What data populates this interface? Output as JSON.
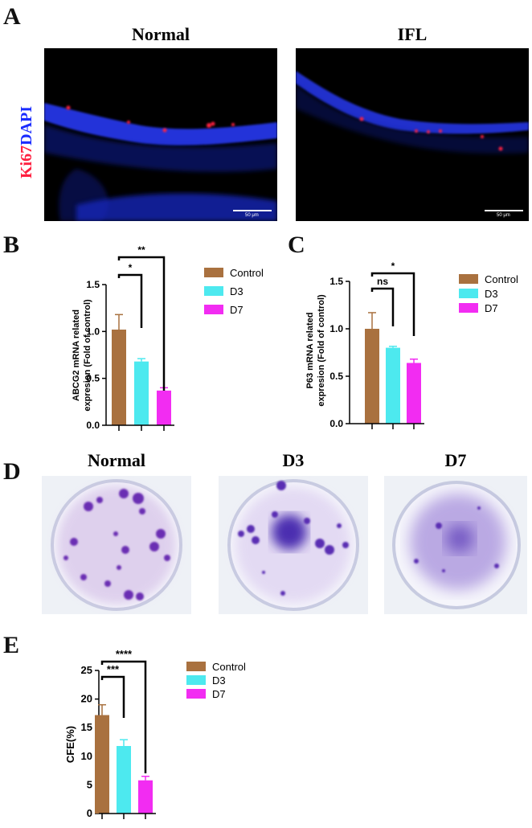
{
  "panels": {
    "A": {
      "letter": "A",
      "titles": [
        "Normal",
        "IFL"
      ],
      "stain_label_red": "Ki67",
      "stain_label_blue": "DAPI",
      "scale_bar": "50 μm"
    },
    "B": {
      "letter": "B"
    },
    "C": {
      "letter": "C"
    },
    "D": {
      "letter": "D",
      "titles": [
        "Normal",
        "D3",
        "D7"
      ]
    },
    "E": {
      "letter": "E"
    }
  },
  "colors": {
    "control": "#a9713f",
    "d3": "#4de9ef",
    "d7": "#f22cf2",
    "dapi": "#1a2cff",
    "ki67": "#ff2040"
  },
  "chart_data": [
    {
      "id": "B",
      "type": "bar",
      "categories": [
        "Control",
        "D3",
        "D7"
      ],
      "values": [
        1.02,
        0.68,
        0.37
      ],
      "errors": [
        0.16,
        0.03,
        0.03
      ],
      "ylabel": "ABCG2 mRNA related expresion (Fold of control)",
      "ylabel_lines": [
        "ABCG2  mRNA  related",
        "expresion  (Fold of control)"
      ],
      "ylim": [
        0,
        1.5
      ],
      "yticks": [
        "0.0",
        "0.5",
        "1.0",
        "1.5"
      ],
      "legend": [
        "Control",
        "D3",
        "D7"
      ],
      "legend_position": "right",
      "significance": [
        {
          "from": 0,
          "to": 1,
          "label": "*"
        },
        {
          "from": 0,
          "to": 2,
          "label": "**"
        }
      ]
    },
    {
      "id": "C",
      "type": "bar",
      "categories": [
        "Control",
        "D3",
        "D7"
      ],
      "values": [
        1.0,
        0.8,
        0.64
      ],
      "errors": [
        0.17,
        0.015,
        0.04
      ],
      "ylabel": "P63 mRNA related expresion (Fold of control)",
      "ylabel_lines": [
        "P63  mRNA  related",
        "expresion  (Fold of control)"
      ],
      "ylim": [
        0,
        1.5
      ],
      "yticks": [
        "0.0",
        "0.5",
        "1.0",
        "1.5"
      ],
      "legend": [
        "Control",
        "D3",
        "D7"
      ],
      "legend_position": "right",
      "significance": [
        {
          "from": 0,
          "to": 1,
          "label": "ns"
        },
        {
          "from": 0,
          "to": 2,
          "label": "*"
        }
      ]
    },
    {
      "id": "E",
      "type": "bar",
      "categories": [
        "Control",
        "D3",
        "D7"
      ],
      "values": [
        17.2,
        11.8,
        5.8
      ],
      "errors": [
        1.8,
        1.1,
        0.7
      ],
      "ylabel": "CFE(%)",
      "ylabel_lines": [
        "CFE(%)"
      ],
      "ylim": [
        0,
        25
      ],
      "yticks": [
        "0",
        "5",
        "10",
        "15",
        "20",
        "25"
      ],
      "legend": [
        "Control",
        "D3",
        "D7"
      ],
      "legend_position": "right",
      "significance": [
        {
          "from": 0,
          "to": 1,
          "label": "***"
        },
        {
          "from": 0,
          "to": 2,
          "label": "****"
        }
      ]
    }
  ]
}
